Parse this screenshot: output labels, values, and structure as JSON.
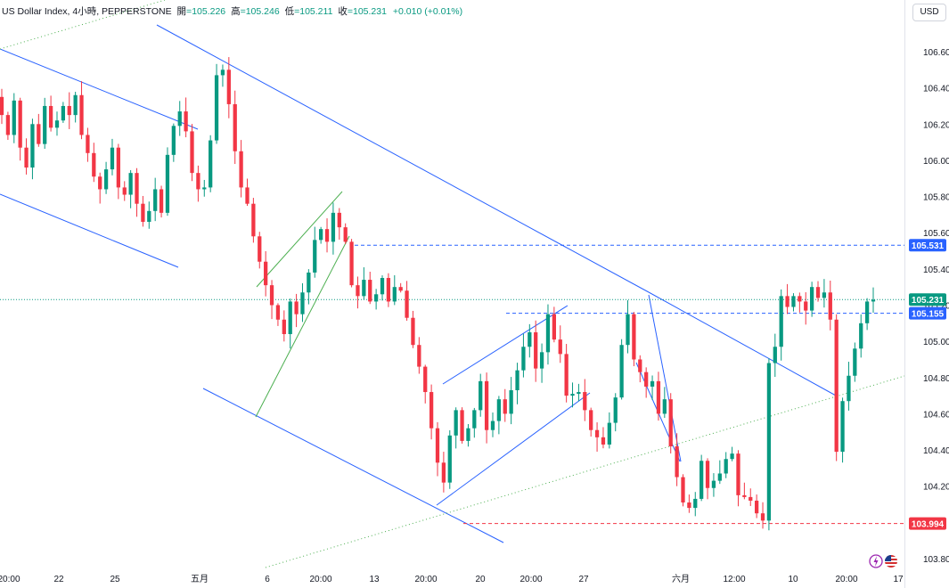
{
  "legend": {
    "symbol": "US Dollar Index, 4小時, PEPPERSTONE",
    "open_label": "開",
    "open": "105.226",
    "high_label": "高",
    "high": "105.246",
    "low_label": "低",
    "low": "105.211",
    "close_label": "收",
    "close": "105.231",
    "change": "+0.010 (+0.01%)"
  },
  "currency_button": "USD",
  "icons": {
    "flash": "lightning-icon",
    "flag": "us-flag-icon"
  },
  "colors": {
    "up": "#089981",
    "down": "#f23645",
    "trendline": "#2962ff",
    "channel": "#4caf50"
  },
  "chart_data": {
    "type": "candlestick",
    "y_axis": {
      "ticks": [
        106.6,
        106.4,
        106.2,
        106.0,
        105.8,
        105.6,
        105.4,
        105.2,
        105.0,
        104.8,
        104.6,
        104.4,
        104.2,
        103.8
      ],
      "tick_labels": [
        "106.600",
        "106.400",
        "106.200",
        "106.000",
        "105.800",
        "105.600",
        "105.400",
        "105.200",
        "105.000",
        "104.800",
        "104.600",
        "104.400",
        "104.200",
        "103.800"
      ],
      "range": [
        103.78,
        106.72
      ],
      "position": "right"
    },
    "x_axis": {
      "labels": [
        "20:00",
        "22",
        "25",
        "五月",
        "6",
        "20:00",
        "13",
        "20:00",
        "20",
        "20:00",
        "27",
        "六月",
        "12:00",
        "10",
        "20:00",
        "17"
      ]
    },
    "price_labels": [
      {
        "value": 105.531,
        "text": "105.531",
        "style": "dashed",
        "color": "#2962ff"
      },
      {
        "value": 105.231,
        "text": "105.231",
        "style": "dotted",
        "color": "#089981"
      },
      {
        "value": 105.155,
        "text": "105.155",
        "style": "dashed",
        "color": "#2962ff"
      },
      {
        "value": 103.994,
        "text": "103.994",
        "style": "dashed",
        "color": "#f23645"
      }
    ],
    "closes": [
      106.25,
      106.14,
      106.33,
      106.07,
      105.96,
      106.2,
      106.09,
      106.3,
      106.18,
      106.22,
      106.3,
      106.25,
      106.36,
      106.14,
      106.04,
      105.91,
      105.84,
      105.95,
      106.07,
      105.85,
      105.81,
      105.93,
      105.76,
      105.66,
      105.72,
      105.84,
      105.71,
      106.03,
      106.19,
      106.27,
      106.16,
      105.93,
      105.84,
      105.85,
      106.11,
      106.47,
      106.5,
      106.31,
      106.05,
      105.85,
      105.76,
      105.58,
      105.44,
      105.31,
      105.2,
      105.12,
      105.04,
      105.22,
      105.15,
      105.27,
      105.38,
      105.56,
      105.62,
      105.55,
      105.71,
      105.63,
      105.55,
      105.31,
      105.25,
      105.34,
      105.22,
      105.26,
      105.35,
      105.22,
      105.3,
      105.28,
      105.13,
      104.98,
      104.86,
      104.72,
      104.52,
      104.33,
      104.22,
      104.48,
      104.62,
      104.45,
      104.52,
      104.62,
      104.78,
      104.51,
      104.56,
      104.68,
      104.6,
      104.73,
      104.84,
      104.97,
      105.05,
      104.85,
      104.94,
      105.15,
      105.01,
      104.93,
      104.7,
      104.71,
      104.72,
      104.62,
      104.51,
      104.47,
      104.43,
      104.55,
      104.69,
      104.98,
      105.15,
      104.9,
      104.83,
      104.75,
      104.78,
      104.6,
      104.68,
      104.42,
      104.25,
      104.11,
      104.08,
      104.13,
      104.34,
      104.19,
      104.23,
      104.27,
      104.35,
      104.38,
      104.15,
      104.14,
      104.12,
      104.05,
      104.01,
      104.88,
      104.97,
      105.25,
      105.19,
      105.25,
      105.22,
      105.17,
      105.3,
      105.24,
      105.27,
      105.12,
      104.39,
      104.67,
      104.81,
      104.96,
      105.1,
      105.22,
      105.23
    ]
  }
}
